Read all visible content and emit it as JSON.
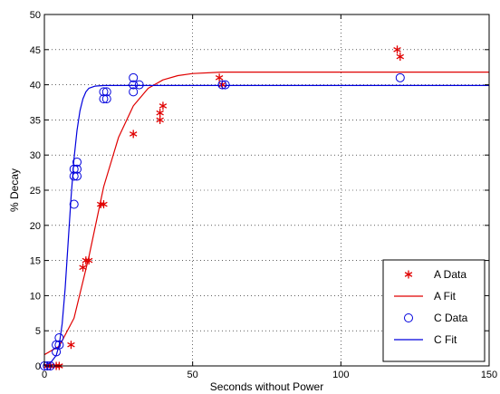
{
  "chart_data": {
    "type": "scatter",
    "title": "",
    "xlabel": "Seconds without Power",
    "ylabel": "% Decay",
    "xlim": [
      0,
      150
    ],
    "ylim": [
      0,
      50
    ],
    "xticks": [
      0,
      50,
      100,
      150
    ],
    "yticks": [
      0,
      5,
      10,
      15,
      20,
      25,
      30,
      35,
      40,
      45,
      50
    ],
    "grid": true,
    "legend_position": "bottom-right",
    "series": [
      {
        "name": "A Data",
        "kind": "markers",
        "marker": "asterisk",
        "color": "#e00000",
        "points": [
          [
            1,
            0
          ],
          [
            2,
            0
          ],
          [
            4,
            0
          ],
          [
            5,
            0
          ],
          [
            9,
            3
          ],
          [
            13,
            14
          ],
          [
            14,
            15
          ],
          [
            15,
            15
          ],
          [
            19,
            23
          ],
          [
            20,
            23
          ],
          [
            30,
            33
          ],
          [
            39,
            35
          ],
          [
            39,
            36
          ],
          [
            40,
            37
          ],
          [
            59,
            41
          ],
          [
            60,
            40
          ],
          [
            119,
            45
          ],
          [
            120,
            44
          ]
        ]
      },
      {
        "name": "A Fit",
        "kind": "line",
        "color": "#e00000",
        "points": [
          [
            0,
            1.6
          ],
          [
            5,
            2.8
          ],
          [
            10,
            6.8
          ],
          [
            15,
            15.5
          ],
          [
            20,
            25.5
          ],
          [
            25,
            32.5
          ],
          [
            30,
            37
          ],
          [
            35,
            39.5
          ],
          [
            40,
            40.7
          ],
          [
            45,
            41.3
          ],
          [
            50,
            41.6
          ],
          [
            60,
            41.8
          ],
          [
            80,
            41.8
          ],
          [
            100,
            41.8
          ],
          [
            120,
            41.8
          ],
          [
            150,
            41.8
          ]
        ]
      },
      {
        "name": "C Data",
        "kind": "markers",
        "marker": "circle",
        "color": "#0000dd",
        "points": [
          [
            0,
            0
          ],
          [
            1,
            0
          ],
          [
            2,
            0
          ],
          [
            4,
            2
          ],
          [
            4,
            3
          ],
          [
            5,
            3
          ],
          [
            5,
            4
          ],
          [
            10,
            23
          ],
          [
            10,
            27
          ],
          [
            10,
            28
          ],
          [
            11,
            27
          ],
          [
            11,
            28
          ],
          [
            11,
            29
          ],
          [
            20,
            38
          ],
          [
            20,
            39
          ],
          [
            21,
            38
          ],
          [
            21,
            39
          ],
          [
            30,
            39
          ],
          [
            30,
            40
          ],
          [
            30,
            41
          ],
          [
            32,
            40
          ],
          [
            60,
            40
          ],
          [
            61,
            40
          ],
          [
            120,
            41
          ]
        ]
      },
      {
        "name": "C Fit",
        "kind": "line",
        "color": "#0000dd",
        "points": [
          [
            0,
            0.1
          ],
          [
            2,
            0.4
          ],
          [
            4,
            1.5
          ],
          [
            5,
            3
          ],
          [
            6,
            6
          ],
          [
            7,
            11
          ],
          [
            8,
            17.5
          ],
          [
            9,
            24
          ],
          [
            10,
            29.5
          ],
          [
            11,
            33.5
          ],
          [
            12,
            36.3
          ],
          [
            13,
            38
          ],
          [
            14,
            39
          ],
          [
            15,
            39.5
          ],
          [
            17,
            39.8
          ],
          [
            20,
            39.9
          ],
          [
            30,
            39.9
          ],
          [
            60,
            39.9
          ],
          [
            100,
            39.9
          ],
          [
            150,
            39.9
          ]
        ]
      }
    ]
  }
}
